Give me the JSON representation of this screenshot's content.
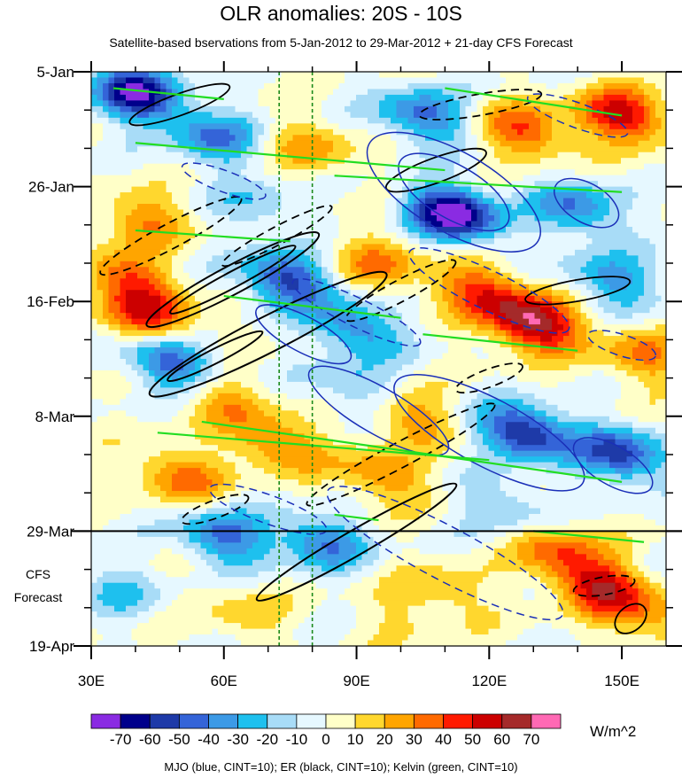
{
  "chart_data": {
    "type": "heatmap",
    "title": "OLR anomalies: 20S - 10S",
    "subtitle": "Satellite-based bservations from 5-Jan-2012 to 29-Mar-2012 + 21-day CFS Forecast",
    "x_ticks": [
      {
        "value": 30,
        "label": "30E"
      },
      {
        "value": 60,
        "label": "60E"
      },
      {
        "value": 90,
        "label": "90E"
      },
      {
        "value": 120,
        "label": "120E"
      },
      {
        "value": 150,
        "label": "150E"
      }
    ],
    "xlim": [
      30,
      160
    ],
    "y_ticks": [
      {
        "label": "5-Jan",
        "day": 0
      },
      {
        "label": "26-Jan",
        "day": 21
      },
      {
        "label": "16-Feb",
        "day": 42
      },
      {
        "label": "8-Mar",
        "day": 63
      },
      {
        "label": "29-Mar",
        "day": 84
      },
      {
        "label": "19-Apr",
        "day": 105
      }
    ],
    "forecast_start": "29-Mar",
    "forecast_label": [
      "CFS",
      "Forecast"
    ],
    "reference_longitudes": [
      72.5,
      80
    ],
    "colorbar": {
      "units": "W/m^2",
      "labels": [
        "-70",
        "-60",
        "-50",
        "-40",
        "-30",
        "-20",
        "-10",
        "0",
        "10",
        "20",
        "30",
        "40",
        "50",
        "60",
        "70"
      ],
      "colors": [
        "#8a2be2",
        "#00008b",
        "#1e3aa8",
        "#3464d8",
        "#3c9ae6",
        "#1ec0ee",
        "#a8dcf7",
        "#e6f8ff",
        "#ffffc8",
        "#ffd72e",
        "#ffa500",
        "#ff6a00",
        "#ff1a00",
        "#cc0000",
        "#a52a2a",
        "#ff69b4"
      ]
    },
    "contour_legend": "MJO (blue, CINT=10); ER (black, CINT=10); Kelvin (green, CINT=10)"
  }
}
